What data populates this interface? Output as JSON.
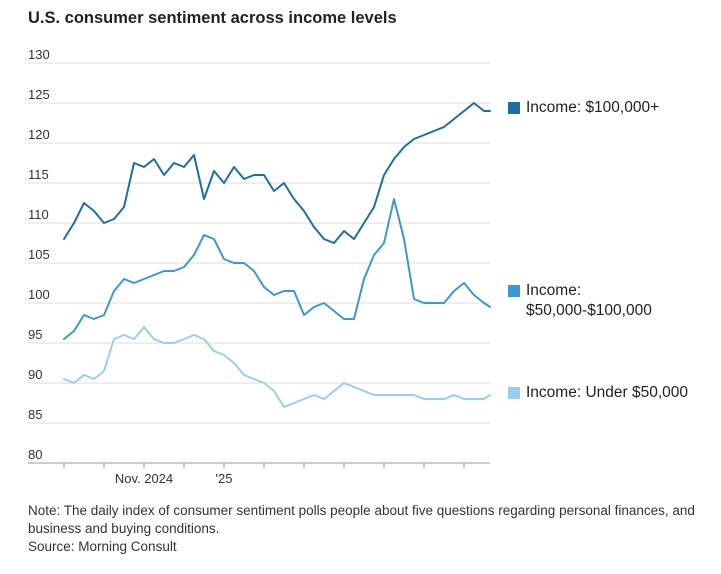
{
  "chart_data": {
    "type": "line",
    "title": "U.S. consumer sentiment across income levels",
    "xlabel": "",
    "ylabel": "",
    "ylim": [
      80,
      130
    ],
    "yticks": [
      80,
      85,
      90,
      95,
      100,
      105,
      110,
      115,
      120,
      125,
      130
    ],
    "x_tick_labels": [
      {
        "label": "Nov. 2024",
        "month_index": 2
      },
      {
        "label": "'25",
        "month_index": 4
      }
    ],
    "x_month_ticks": [
      0,
      1,
      2,
      3,
      4,
      5,
      6,
      7,
      8,
      9,
      10,
      11
    ],
    "x_range_months": [
      0,
      10.65
    ],
    "x": [
      0,
      0.25,
      0.5,
      0.75,
      1,
      1.25,
      1.5,
      1.75,
      2,
      2.25,
      2.5,
      2.75,
      3,
      3.25,
      3.5,
      3.75,
      4,
      4.25,
      4.5,
      4.75,
      5,
      5.25,
      5.5,
      5.75,
      6,
      6.25,
      6.5,
      6.75,
      7,
      7.25,
      7.5,
      7.75,
      8,
      8.25,
      8.5,
      8.75,
      9,
      9.25,
      9.5,
      9.75,
      10,
      10.25,
      10.5,
      10.65
    ],
    "series": [
      {
        "name": "Income: $100,000+",
        "color": "#1d6ea8",
        "values": [
          108,
          110,
          112.5,
          111.5,
          110,
          110.5,
          112,
          117.5,
          117,
          118,
          116,
          117.5,
          117,
          118.5,
          113,
          116.5,
          115,
          117,
          115.5,
          116,
          116,
          114,
          115,
          113,
          111.5,
          109.5,
          108,
          107.5,
          109,
          108,
          110,
          112,
          116,
          118,
          119.5,
          120.5,
          121,
          121.5,
          122,
          123,
          124,
          125,
          124,
          124
        ]
      },
      {
        "name": "Income: $50,000-$100,000",
        "color": "#3c97d9",
        "values": [
          95.5,
          96.5,
          98.5,
          98,
          98.5,
          101.5,
          103,
          102.5,
          103,
          103.5,
          104,
          104,
          104.5,
          106,
          108.5,
          108,
          105.5,
          105,
          105,
          104,
          102,
          101,
          101.5,
          101.5,
          98.5,
          99.5,
          100,
          99,
          98,
          98,
          103,
          106,
          107.5,
          113,
          108,
          100.5,
          100,
          100,
          100,
          101.5,
          102.5,
          101,
          100,
          99.5
        ]
      },
      {
        "name": "Income: Under $50,000",
        "color": "#97ceef",
        "values": [
          90.5,
          90,
          91,
          90.5,
          91.5,
          95.5,
          96,
          95.5,
          97,
          95.5,
          95,
          95,
          95.5,
          96,
          95.5,
          94,
          93.5,
          92.5,
          91,
          90.5,
          90,
          89,
          87,
          87.5,
          88,
          88.5,
          88,
          89,
          90,
          89.5,
          89,
          88.5,
          88.5,
          88.5,
          88.5,
          88.5,
          88,
          88,
          88,
          88.5,
          88,
          88,
          88,
          88.5
        ]
      }
    ]
  },
  "legend": [
    {
      "label": "Income: $100,000+",
      "color": "#1d6ea8"
    },
    {
      "label": "Income: $50,000-$100,000",
      "color": "#3c97d9"
    },
    {
      "label": "Income: Under $50,000",
      "color": "#97ceef"
    }
  ],
  "footer": {
    "note": "Note: The daily index of consumer sentiment polls people about five questions regarding personal finances, and business and buying conditions.",
    "source": "Source: Morning Consult"
  }
}
